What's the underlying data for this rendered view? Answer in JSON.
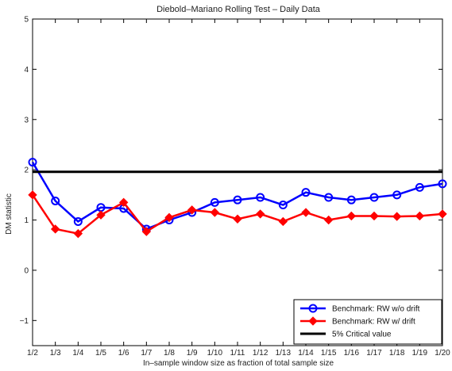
{
  "chart_data": {
    "type": "line",
    "title": "Diebold–Mariano Rolling Test – Daily Data",
    "xlabel": "In–sample window size as fraction of total sample size",
    "ylabel": "DM statistic",
    "categories": [
      "1/2",
      "1/3",
      "1/4",
      "1/5",
      "1/6",
      "1/7",
      "1/8",
      "1/9",
      "1/10",
      "1/11",
      "1/12",
      "1/13",
      "1/14",
      "1/15",
      "1/16",
      "1/17",
      "1/18",
      "1/19",
      "1/20"
    ],
    "ylim": [
      -1.5,
      5
    ],
    "yticks": [
      -1,
      0,
      1,
      2,
      3,
      4,
      5
    ],
    "ytick_labels": [
      "−1",
      "0",
      "1",
      "2",
      "3",
      "4",
      "5"
    ],
    "grid": false,
    "legend_position": "bottom-right",
    "series": [
      {
        "name": "Benchmark: RW w/o drift",
        "color": "#0000ff",
        "marker": "circle",
        "values": [
          2.15,
          1.38,
          0.97,
          1.25,
          1.23,
          0.82,
          1.0,
          1.15,
          1.35,
          1.4,
          1.45,
          1.3,
          1.55,
          1.45,
          1.4,
          1.45,
          1.5,
          1.65,
          1.72
        ]
      },
      {
        "name": "Benchmark: RW w/ drift",
        "color": "#ff0000",
        "marker": "diamond",
        "values": [
          1.5,
          0.82,
          0.73,
          1.1,
          1.35,
          0.77,
          1.05,
          1.2,
          1.15,
          1.02,
          1.12,
          0.97,
          1.15,
          1.0,
          1.08,
          1.08,
          1.07,
          1.08,
          1.12
        ]
      },
      {
        "name": "5% Critical value",
        "color": "#000000",
        "marker": "none",
        "values": [
          1.96,
          1.96,
          1.96,
          1.96,
          1.96,
          1.96,
          1.96,
          1.96,
          1.96,
          1.96,
          1.96,
          1.96,
          1.96,
          1.96,
          1.96,
          1.96,
          1.96,
          1.96,
          1.96
        ]
      }
    ]
  }
}
